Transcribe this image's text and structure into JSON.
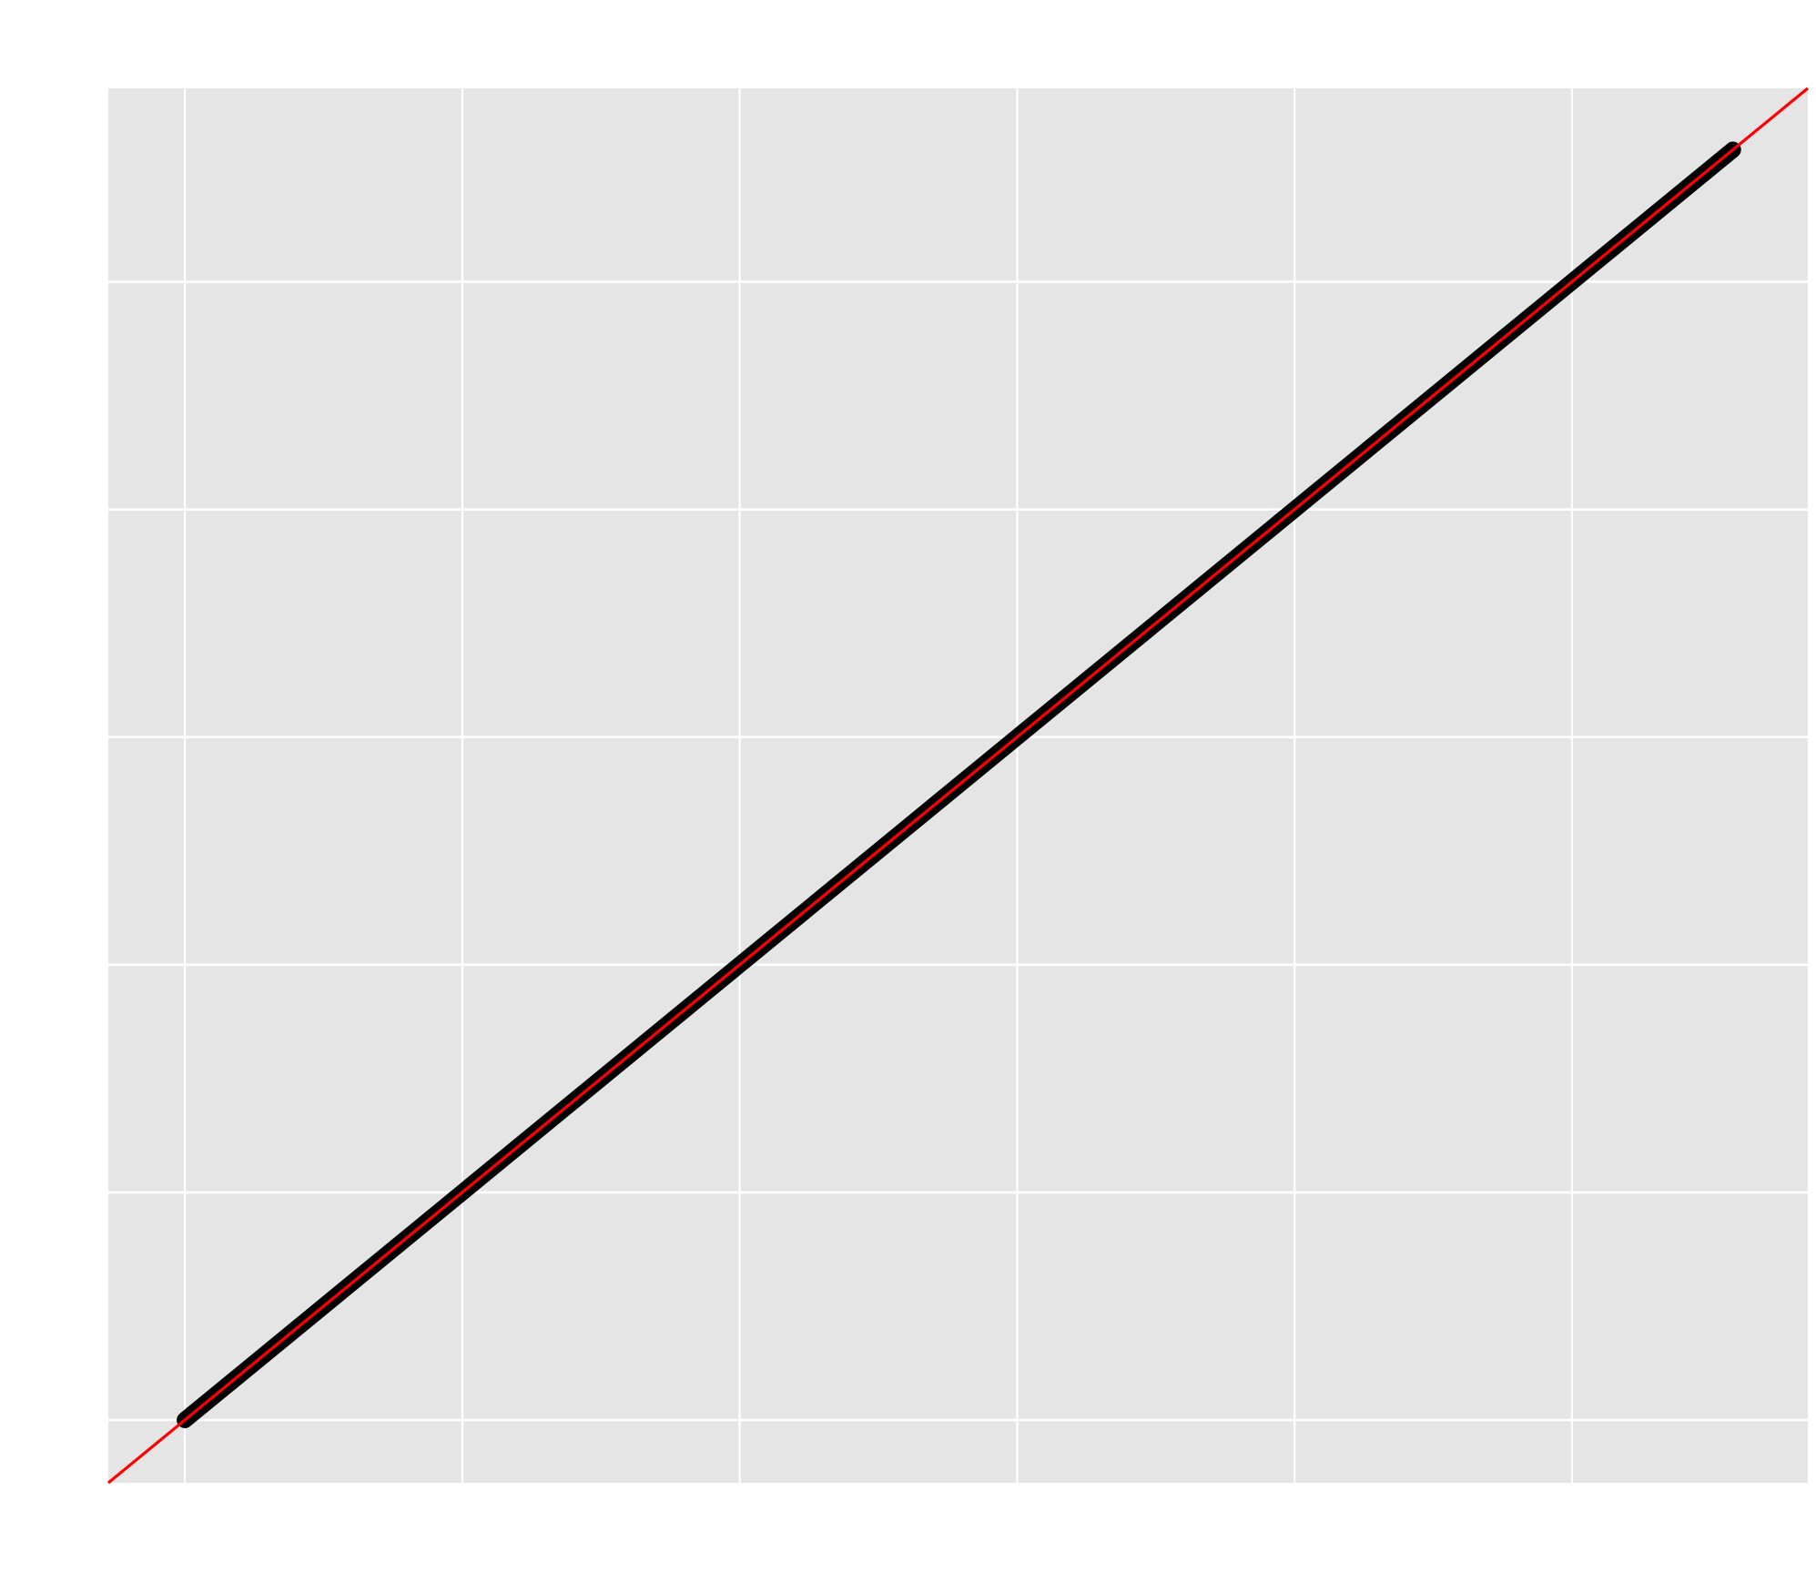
{
  "chart_data": {
    "type": "scatter",
    "title": "",
    "xlabel": "",
    "ylabel": "",
    "grid": true,
    "xlim": [
      -0.138,
      2.925
    ],
    "ylim": [
      -0.138,
      2.925
    ],
    "major_ticks": [
      0,
      1,
      2,
      3,
      4,
      5
    ],
    "minor_ticks": [
      0.5,
      1.5,
      2.5,
      3.5,
      4.5,
      5.5
    ],
    "x_tick_positions": [
      0,
      0.5,
      1,
      1.5,
      2,
      2.5
    ],
    "y_tick_positions": [
      0,
      0.5,
      1,
      1.5,
      2,
      2.5
    ],
    "points_x_range": [
      0,
      2.79
    ],
    "points_y_range": [
      0,
      2.79
    ],
    "reference_line": {
      "slope": 1,
      "intercept": 0,
      "color": "#ff0000"
    },
    "series": [
      {
        "x": [
          0,
          0.1,
          0.2,
          0.3,
          0.4,
          0.5,
          0.6,
          0.7,
          0.8,
          0.9,
          1.0,
          1.1,
          1.2,
          1.3,
          1.4,
          1.5,
          1.6,
          1.7,
          1.8,
          1.9,
          2.0,
          2.1,
          2.2,
          2.3,
          2.4,
          2.5,
          2.6,
          2.7,
          2.78,
          2.79
        ],
        "y": [
          0,
          0.1,
          0.2,
          0.3,
          0.4,
          0.5,
          0.6,
          0.7,
          0.8,
          0.9,
          1.0,
          1.1,
          1.2,
          1.3,
          1.4,
          1.5,
          1.6,
          1.7,
          1.8,
          1.9,
          2.0,
          2.1,
          2.2,
          2.3,
          2.4,
          2.5,
          2.6,
          2.7,
          2.78,
          2.79
        ]
      }
    ],
    "colors": {
      "panel": "#e5e5e5",
      "grid": "#ffffff",
      "points": "#000000",
      "reference": "#ff0000",
      "background": "#ffffff"
    }
  }
}
